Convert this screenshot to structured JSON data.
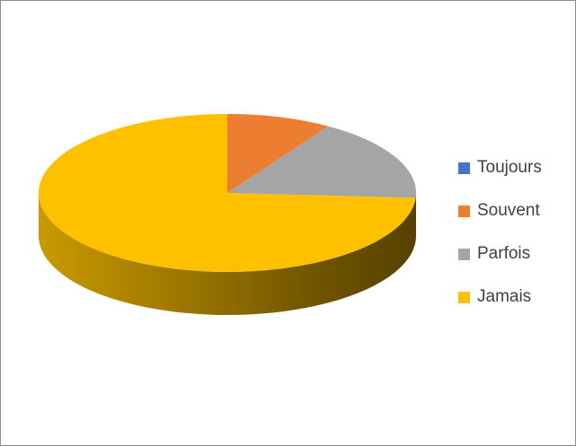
{
  "chart_data": {
    "type": "pie",
    "categories": [
      "Toujours",
      "Souvent",
      "Parfois",
      "Jamais"
    ],
    "values": [
      0,
      9,
      17,
      74
    ],
    "colors": [
      "#4472c4",
      "#ed7d31",
      "#a5a5a5",
      "#ffc000"
    ],
    "legend_position": "right",
    "title": ""
  }
}
